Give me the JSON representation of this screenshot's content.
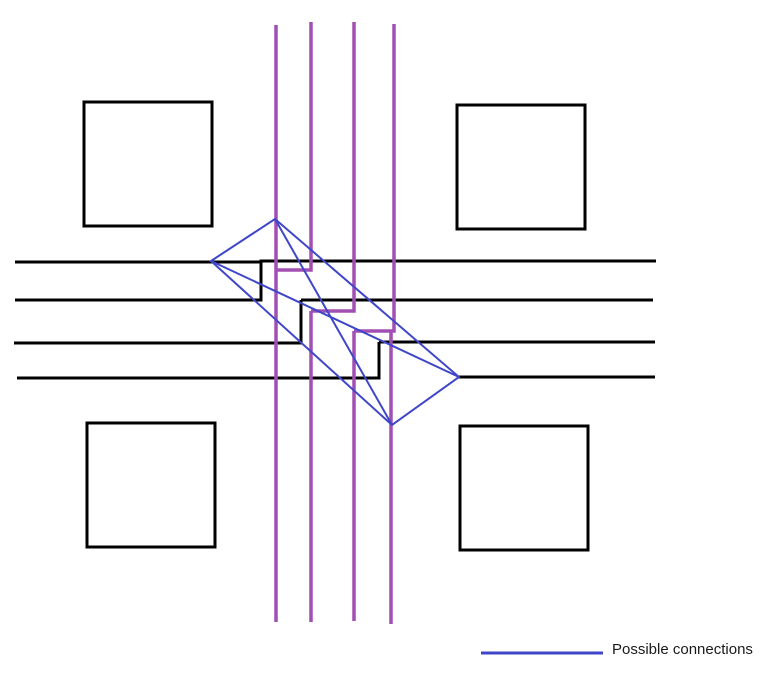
{
  "legend": {
    "label": "Possible connections"
  },
  "colors": {
    "background": "#ffffff",
    "blocks": "#000000",
    "horizontal_lines": "#000000",
    "vertical_lines": "#a24fb3",
    "connections": "#3f47c8"
  },
  "elements": {
    "blocks": 4,
    "horizontal_lines": 4,
    "vertical_lines": 4
  }
}
